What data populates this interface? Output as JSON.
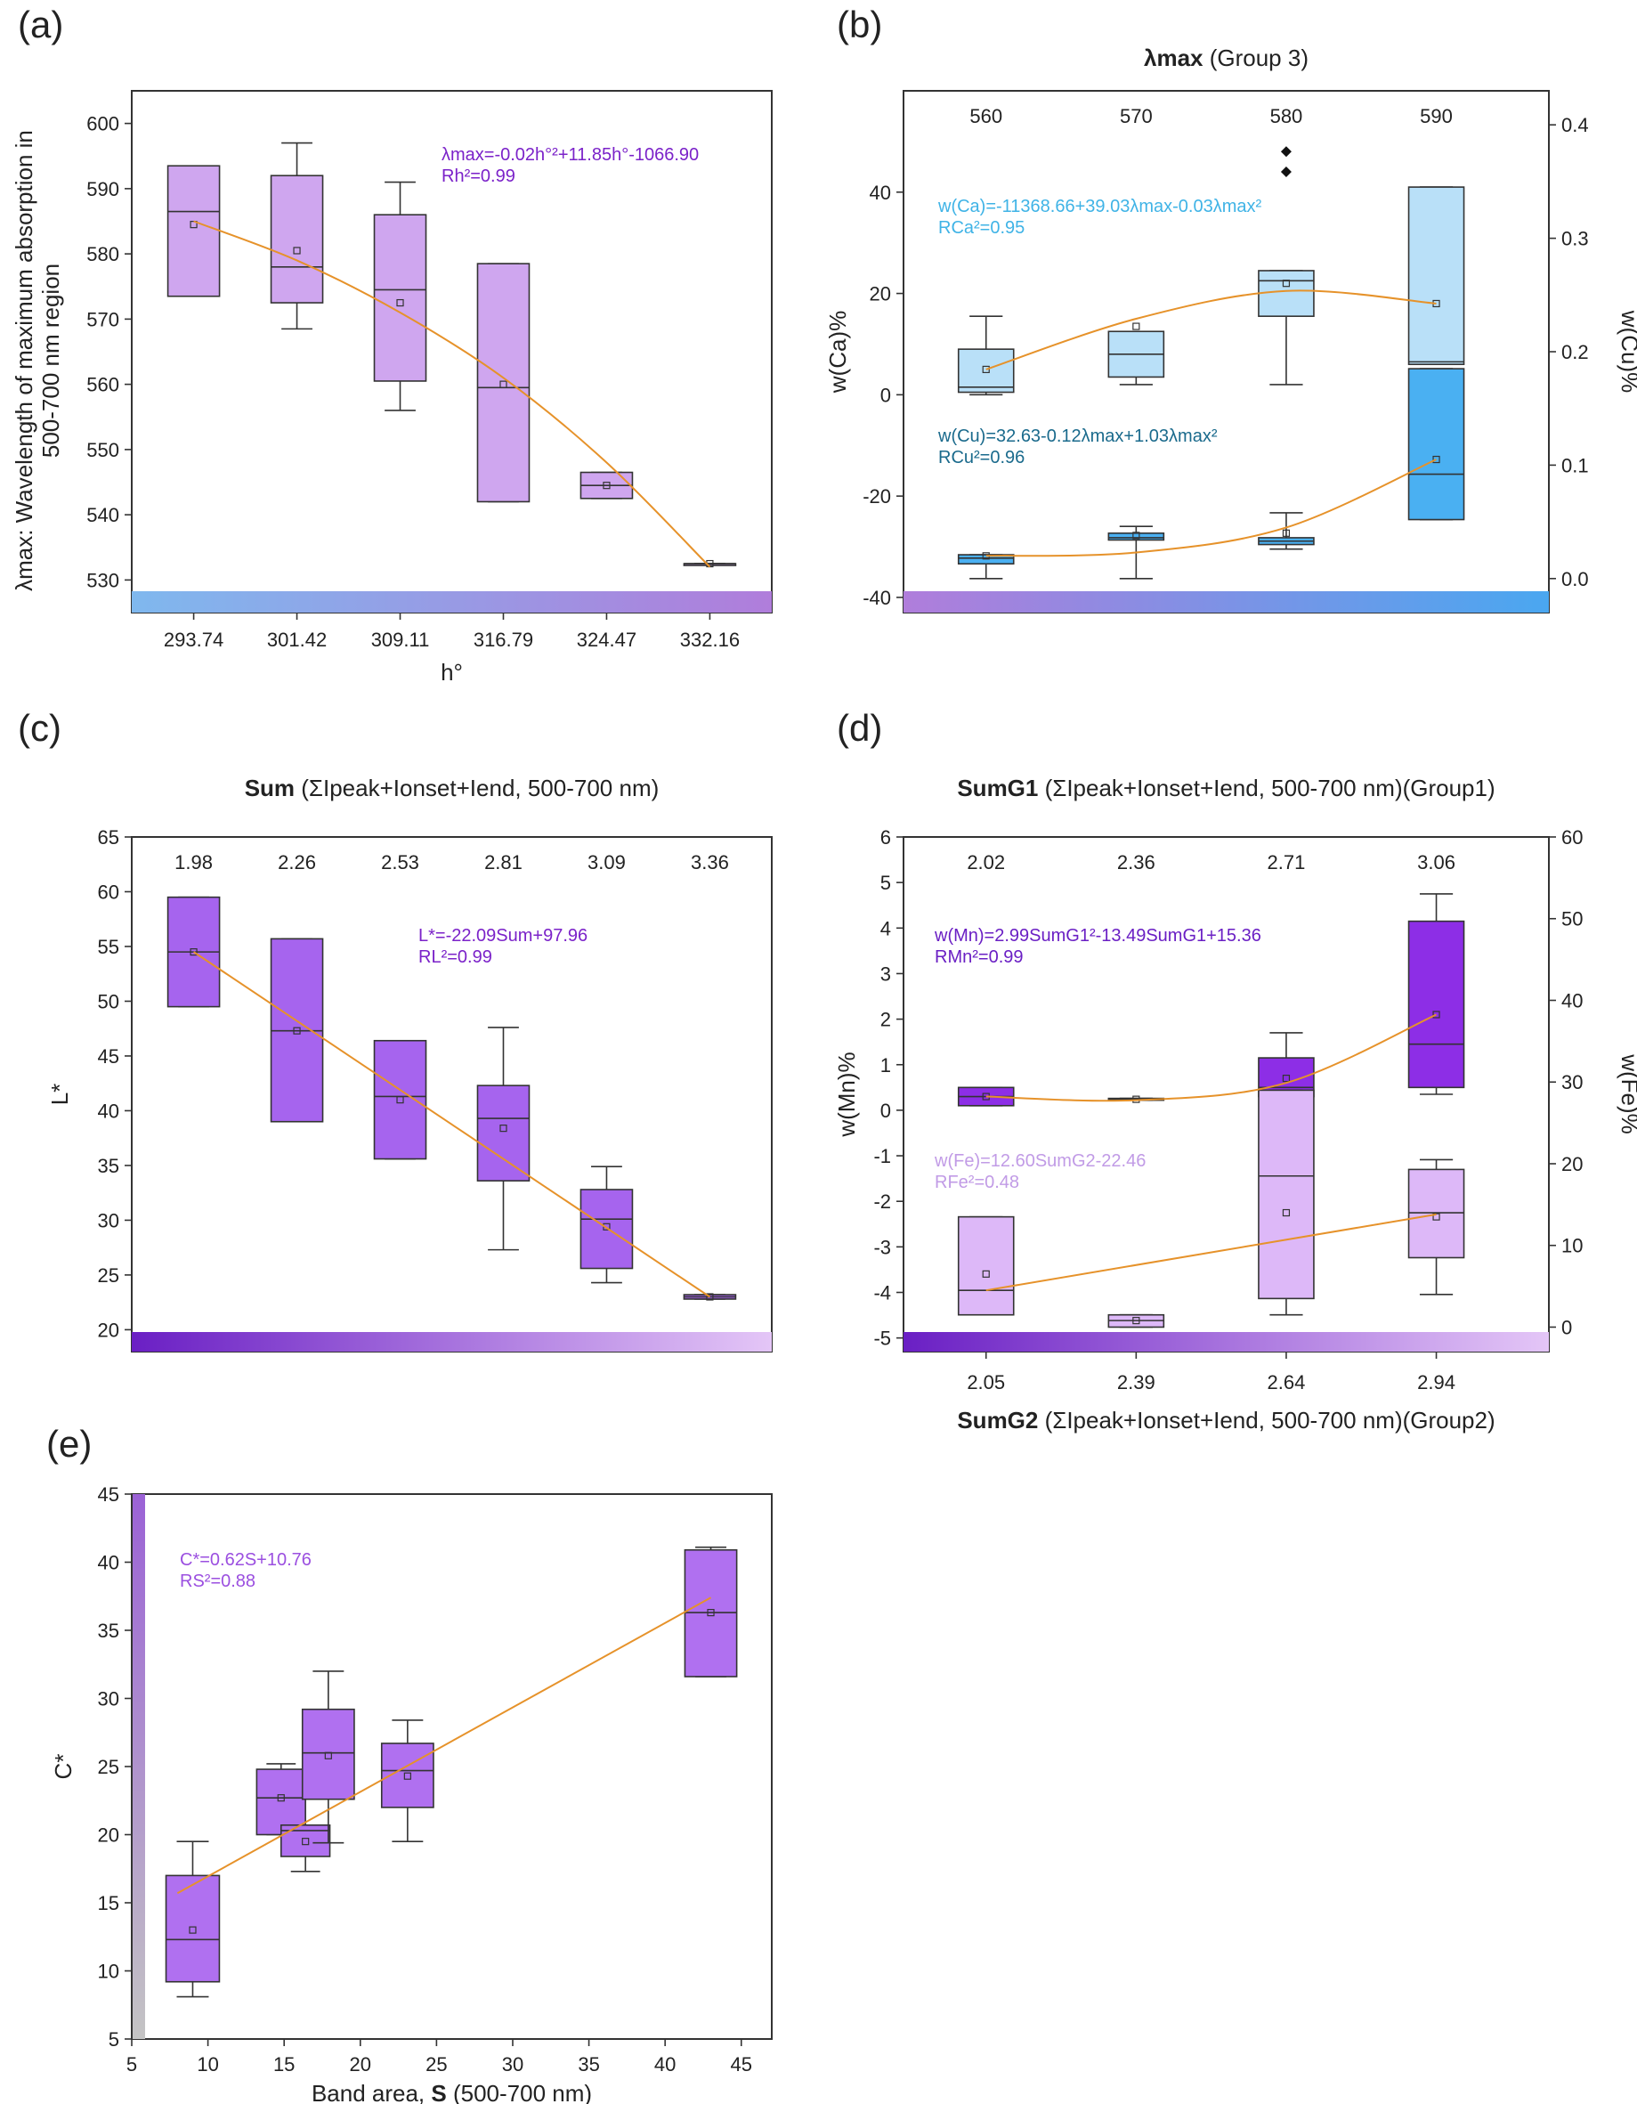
{
  "panels": [
    {
      "id": "a",
      "label": "(a)",
      "top_title": "",
      "top_title_parts": [],
      "x_bottom": {
        "label_parts": [
          {
            "t": "h°",
            "b": false
          }
        ],
        "ticks": [
          "293.74",
          "301.42",
          "309.11",
          "316.79",
          "324.47",
          "332.16"
        ]
      },
      "x_top": null,
      "y_left": {
        "label_lines": [
          "λmax: Wavelength of maximum absorption in",
          "500-700 nm region"
        ],
        "min": 525,
        "max": 605,
        "ticks": [
          530,
          540,
          550,
          560,
          570,
          580,
          590,
          600
        ]
      },
      "y_right": null,
      "colorbar": {
        "from": "#7fb8ee",
        "to": "#b07ddb"
      },
      "equations": [
        {
          "lines": [
            "λmax=-0.02h°²+11.85h°-1066.90",
            "Rh²=0.99"
          ],
          "color": "#7b22c9"
        }
      ]
    },
    {
      "id": "b",
      "label": "(b)",
      "top_title_parts": [
        {
          "t": "λmax",
          "b": true
        },
        {
          "t": " (Group 3)",
          "b": false
        }
      ],
      "x_top": {
        "ticks": [
          "560",
          "570",
          "580",
          "590"
        ]
      },
      "y_left": {
        "label_lines": [
          "w(Ca)%"
        ],
        "min": -43,
        "max": 60,
        "ticks": [
          -40,
          -20,
          0,
          20,
          40
        ]
      },
      "y_right": {
        "label_lines": [
          "w(Cu)%"
        ],
        "min": -0.03,
        "max": 0.43,
        "ticks": [
          "0.0",
          "0.1",
          "0.2",
          "0.3",
          "0.4"
        ]
      },
      "colorbar": {
        "from": "#b07ddb",
        "to": "#4aa7f0"
      },
      "equations": [
        {
          "lines": [
            "w(Ca)=-11368.66+39.03λmax-0.03λmax²",
            "RCa²=0.95"
          ],
          "color": "#3fb3e6"
        },
        {
          "lines": [
            "w(Cu)=32.63-0.12λmax+1.03λmax²",
            "RCu²=0.96"
          ],
          "color": "#1a6a8c"
        }
      ]
    },
    {
      "id": "c",
      "label": "(c)",
      "top_title_parts": [
        {
          "t": "Sum",
          "b": true
        },
        {
          "t": " (ΣIpeak+Ionset+Iend, 500-700 nm)",
          "b": false
        }
      ],
      "x_top": {
        "ticks": [
          "1.98",
          "2.26",
          "2.53",
          "2.81",
          "3.09",
          "3.36"
        ]
      },
      "y_left": {
        "label_lines": [
          "L*"
        ],
        "min": 18,
        "max": 65,
        "ticks": [
          20,
          25,
          30,
          35,
          40,
          45,
          50,
          55,
          60,
          65
        ]
      },
      "y_right": null,
      "colorbar": {
        "from": "#6a1fc4",
        "to": "#e4c6f7"
      },
      "equations": [
        {
          "lines": [
            "L*=-22.09Sum+97.96",
            "RL²=0.99"
          ],
          "color": "#7b22c9"
        }
      ]
    },
    {
      "id": "d",
      "label": "(d)",
      "top_title_parts": [
        {
          "t": "SumG1",
          "b": true
        },
        {
          "t": " (ΣIpeak+Ionset+Iend, 500-700 nm)(Group1)",
          "b": false
        }
      ],
      "bottom_title_parts": [
        {
          "t": "SumG2",
          "b": true
        },
        {
          "t": " (ΣIpeak+Ionset+Iend, 500-700 nm)(Group2)",
          "b": false
        }
      ],
      "x_top": {
        "ticks": [
          "2.02",
          "2.36",
          "2.71",
          "3.06"
        ]
      },
      "x_bottom": {
        "ticks": [
          "2.05",
          "2.39",
          "2.64",
          "2.94"
        ]
      },
      "y_left": {
        "label_lines": [
          "w(Mn)%"
        ],
        "min": -5.3,
        "max": 6,
        "ticks": [
          "-5",
          "-4",
          "-3",
          "-2",
          "-1",
          "0",
          "1",
          "2",
          "3",
          "4",
          "5",
          "6"
        ]
      },
      "y_right": {
        "label_lines": [
          "w(Fe)%"
        ],
        "min": -3,
        "max": 60,
        "ticks": [
          "0",
          "10",
          "20",
          "30",
          "40",
          "50",
          "60"
        ]
      },
      "colorbar": {
        "from": "#6a1fc4",
        "to": "#e4c6f7"
      },
      "equations": [
        {
          "lines": [
            "w(Mn)=2.99SumG1²-13.49SumG1+15.36",
            "RMn²=0.99"
          ],
          "color": "#6a1fc4"
        },
        {
          "lines": [
            "w(Fe)=12.60SumG2-22.46",
            "RFe²=0.48"
          ],
          "color": "#c19be6"
        }
      ]
    },
    {
      "id": "e",
      "label": "(e)",
      "x_bottom": {
        "label_parts": [
          {
            "t": "Band area, ",
            "b": false
          },
          {
            "t": "S",
            "b": true
          },
          {
            "t": " (500-700 nm)",
            "b": false
          }
        ],
        "min": 5,
        "max": 47,
        "ticks": [
          "5",
          "10",
          "15",
          "20",
          "25",
          "30",
          "35",
          "40",
          "45"
        ]
      },
      "y_left": {
        "label_lines": [
          "C*"
        ],
        "min": 5,
        "max": 45,
        "ticks": [
          "5",
          "10",
          "15",
          "20",
          "25",
          "30",
          "35",
          "40",
          "45"
        ]
      },
      "colorbar": {
        "from": "#9b62d6",
        "to": "#c4c4c4"
      },
      "equations": [
        {
          "lines": [
            "C*=0.62S+10.76",
            "RS²=0.88"
          ],
          "color": "#9b4fe0"
        }
      ]
    }
  ],
  "chart_data": [
    {
      "panel": "a",
      "type": "box",
      "title": "",
      "xlabel": "h°",
      "ylabel": "λmax: Wavelength of maximum absorption in 500-700 nm region",
      "categories": [
        "293.74",
        "301.42",
        "309.11",
        "316.79",
        "324.47",
        "332.16"
      ],
      "ylim": [
        525,
        605
      ],
      "box_color": "#cfa6ef",
      "boxes": [
        {
          "q1": 573.5,
          "median": 586.5,
          "q3": 593.5,
          "mean": 584.5,
          "wlo": 573.5,
          "whi": 593.5
        },
        {
          "q1": 572.5,
          "median": 578,
          "q3": 592,
          "mean": 580.5,
          "wlo": 568.5,
          "whi": 597
        },
        {
          "q1": 560.5,
          "median": 574.5,
          "q3": 586,
          "mean": 572.5,
          "wlo": 556,
          "whi": 591
        },
        {
          "q1": 542,
          "median": 559.5,
          "q3": 578.5,
          "mean": 560,
          "wlo": 542,
          "whi": 578.5
        },
        {
          "q1": 542.5,
          "median": 544.5,
          "q3": 546.5,
          "mean": 544.5,
          "wlo": 542.5,
          "whi": 546.5
        },
        {
          "q1": 532.5,
          "median": 532.5,
          "q3": 532.5,
          "mean": 532.5,
          "wlo": 532.5,
          "whi": 532.5
        }
      ],
      "fit": [
        [
          0,
          585
        ],
        [
          1,
          579
        ],
        [
          2,
          571
        ],
        [
          3,
          561
        ],
        [
          4,
          548
        ],
        [
          5,
          532
        ]
      ]
    },
    {
      "panel": "b",
      "type": "box",
      "title": "λmax (Group 3)",
      "ylabel": "w(Ca)%",
      "y2label": "w(Cu)%",
      "categories": [
        "560",
        "570",
        "580",
        "590"
      ],
      "ylim": [
        -43,
        60
      ],
      "y2lim": [
        -0.03,
        0.43
      ],
      "series": [
        {
          "name": "w(Ca)",
          "axis": "left",
          "box_color": "#b9e0f8",
          "boxes": [
            {
              "q1": 0.5,
              "median": 1.5,
              "q3": 9,
              "mean": 5,
              "wlo": 0,
              "whi": 15.5
            },
            {
              "q1": 3.5,
              "median": 8,
              "q3": 12.5,
              "mean": 13.5,
              "wlo": 2,
              "whi": 12.5
            },
            {
              "q1": 15.5,
              "median": 22.5,
              "q3": 24.5,
              "mean": 22,
              "wlo": 2,
              "whi": 24.5,
              "outliers": [
                44,
                48
              ]
            },
            {
              "q1": 6,
              "median": 6.5,
              "q3": 41,
              "mean": 18,
              "wlo": 6,
              "whi": 41
            }
          ],
          "fit": [
            [
              0,
              5
            ],
            [
              1,
              15
            ],
            [
              2,
              20.5
            ],
            [
              3,
              18
            ]
          ]
        },
        {
          "name": "w(Cu)",
          "axis": "right",
          "box_color": "#4ab0f2",
          "boxes": [
            {
              "q1": 0.013,
              "median": 0.018,
              "q3": 0.021,
              "mean": 0.02,
              "wlo": 0.0,
              "whi": 0.021
            },
            {
              "q1": 0.034,
              "median": 0.036,
              "q3": 0.04,
              "mean": 0.038,
              "wlo": 0.0,
              "whi": 0.046
            },
            {
              "q1": 0.03,
              "median": 0.033,
              "q3": 0.036,
              "mean": 0.04,
              "wlo": 0.026,
              "whi": 0.058
            },
            {
              "q1": 0.052,
              "median": 0.092,
              "q3": 0.185,
              "mean": 0.105,
              "wlo": 0.052,
              "whi": 0.185
            }
          ],
          "fit": [
            [
              0,
              0.02
            ],
            [
              1,
              0.023
            ],
            [
              2,
              0.045
            ],
            [
              3,
              0.105
            ]
          ]
        }
      ]
    },
    {
      "panel": "c",
      "type": "box",
      "title": "Sum (ΣIpeak+Ionset+Iend, 500-700 nm)",
      "ylabel": "L*",
      "categories": [
        "1.98",
        "2.26",
        "2.53",
        "2.81",
        "3.09",
        "3.36"
      ],
      "ylim": [
        18,
        65
      ],
      "box_color": "#a664ee",
      "boxes": [
        {
          "q1": 49.5,
          "median": 54.5,
          "q3": 59.5,
          "mean": 54.5,
          "wlo": 49.5,
          "whi": 59.5
        },
        {
          "q1": 39,
          "median": 47.3,
          "q3": 55.7,
          "mean": 47.3,
          "wlo": 39,
          "whi": 55.7
        },
        {
          "q1": 35.6,
          "median": 41.3,
          "q3": 46.4,
          "mean": 41,
          "wlo": 35.6,
          "whi": 46.4
        },
        {
          "q1": 33.6,
          "median": 39.3,
          "q3": 42.3,
          "mean": 38.4,
          "wlo": 27.3,
          "whi": 47.6
        },
        {
          "q1": 25.6,
          "median": 30.1,
          "q3": 32.8,
          "mean": 29.4,
          "wlo": 24.3,
          "whi": 34.9
        },
        {
          "q1": 22.8,
          "median": 23,
          "q3": 23.2,
          "mean": 23,
          "wlo": 22.8,
          "whi": 23.2
        }
      ],
      "fit": [
        [
          0,
          54.5
        ],
        [
          5,
          23
        ]
      ]
    },
    {
      "panel": "d",
      "type": "box",
      "title": "SumG1 (ΣIpeak+Ionset+Iend, 500-700 nm)(Group1)",
      "xlabel": "SumG2 (ΣIpeak+Ionset+Iend, 500-700 nm)(Group2)",
      "ylabel": "w(Mn)%",
      "y2label": "w(Fe)%",
      "categories_top": [
        "2.02",
        "2.36",
        "2.71",
        "3.06"
      ],
      "categories_bottom": [
        "2.05",
        "2.39",
        "2.64",
        "2.94"
      ],
      "ylim": [
        -5.3,
        6
      ],
      "y2lim": [
        -3,
        60
      ],
      "series": [
        {
          "name": "w(Mn)",
          "axis": "left",
          "box_color": "#8d2ee6",
          "boxes": [
            {
              "q1": 0.1,
              "median": 0.3,
              "q3": 0.5,
              "mean": 0.3,
              "wlo": 0.1,
              "whi": 0.5
            },
            {
              "q1": 0.22,
              "median": 0.24,
              "q3": 0.26,
              "mean": 0.24,
              "wlo": 0.22,
              "whi": 0.26
            },
            {
              "q1": 0.3,
              "median": 0.5,
              "q3": 1.15,
              "mean": 0.7,
              "wlo": 0.2,
              "whi": 1.7
            },
            {
              "q1": 0.5,
              "median": 1.45,
              "q3": 4.15,
              "mean": 2.1,
              "wlo": 0.35,
              "whi": 4.75
            }
          ],
          "fit": [
            [
              0,
              0.3
            ],
            [
              1,
              0.22
            ],
            [
              2,
              0.6
            ],
            [
              3,
              2.1
            ]
          ]
        },
        {
          "name": "w(Fe)",
          "axis": "right",
          "box_color": "#ddb8f8",
          "boxes": [
            {
              "q1": 1.5,
              "median": 4.5,
              "q3": 13.5,
              "mean": 6.5,
              "wlo": 1.5,
              "whi": 13.5
            },
            {
              "q1": 0,
              "median": 0.8,
              "q3": 1.5,
              "mean": 0.8,
              "wlo": 0,
              "whi": 1.5
            },
            {
              "q1": 3.5,
              "median": 18.5,
              "q3": 29,
              "mean": 14,
              "wlo": 1.5,
              "whi": 29
            },
            {
              "q1": 8.5,
              "median": 14,
              "q3": 19.3,
              "mean": 13.5,
              "wlo": 4,
              "whi": 20.5
            }
          ],
          "fit": [
            [
              0,
              4.5
            ],
            [
              3,
              13.8
            ]
          ]
        }
      ]
    },
    {
      "panel": "e",
      "type": "box",
      "xlabel": "Band area, S (500-700 nm)",
      "ylabel": "C*",
      "xlim": [
        5,
        47
      ],
      "ylim": [
        5,
        45
      ],
      "box_color": "#b070f0",
      "boxes": [
        {
          "x": 9,
          "w": 3.5,
          "q1": 9.2,
          "median": 12.3,
          "q3": 17,
          "mean": 13,
          "wlo": 8.1,
          "whi": 19.5
        },
        {
          "x": 14.8,
          "w": 3.2,
          "q1": 20,
          "median": 22.7,
          "q3": 24.8,
          "mean": 22.7,
          "wlo": 20,
          "whi": 25.2
        },
        {
          "x": 16.4,
          "w": 3.2,
          "q1": 18.4,
          "median": 20.3,
          "q3": 20.7,
          "mean": 19.5,
          "wlo": 17.3,
          "whi": 20.7
        },
        {
          "x": 17.9,
          "w": 3.4,
          "q1": 22.6,
          "median": 26,
          "q3": 29.2,
          "mean": 25.8,
          "wlo": 19.4,
          "whi": 32
        },
        {
          "x": 23.1,
          "w": 3.4,
          "q1": 22,
          "median": 24.7,
          "q3": 26.7,
          "mean": 24.3,
          "wlo": 19.5,
          "whi": 28.4
        },
        {
          "x": 43,
          "w": 3.4,
          "q1": 31.6,
          "median": 36.3,
          "q3": 40.9,
          "mean": 36.3,
          "wlo": 31.6,
          "whi": 41.1
        }
      ],
      "fit": [
        [
          8,
          15.7
        ],
        [
          43,
          37.4
        ]
      ]
    }
  ]
}
